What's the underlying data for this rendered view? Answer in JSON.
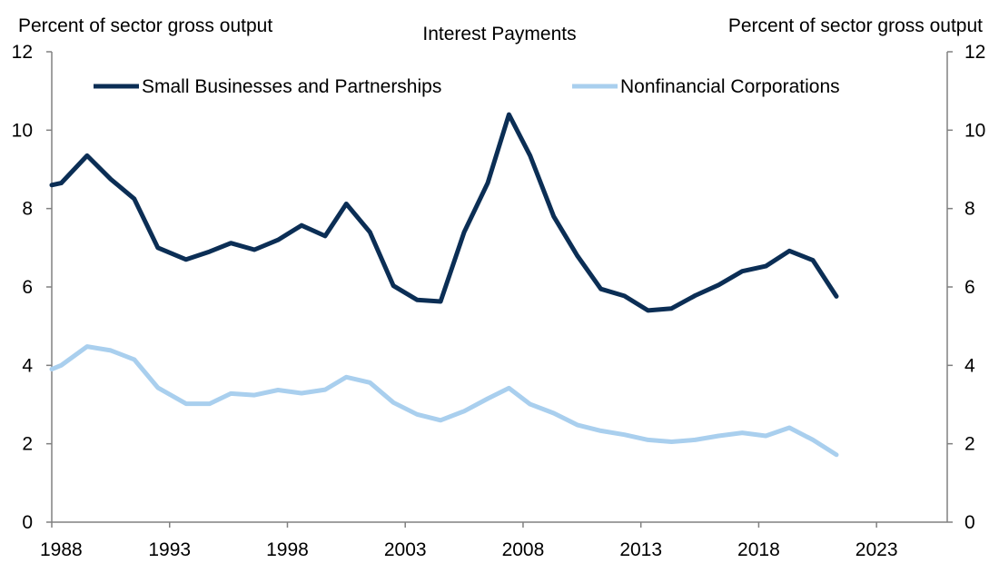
{
  "chart_data": {
    "type": "line",
    "title": "Interest Payments",
    "ylabel_left": "Percent of sector gross output",
    "ylabel_right": "Percent of sector gross output",
    "xlim": [
      1988,
      2026
    ],
    "ylim": [
      0,
      12
    ],
    "x_ticks": [
      "1988",
      "1993",
      "1998",
      "2003",
      "2008",
      "2013",
      "2018",
      "2023"
    ],
    "y_ticks_left": [
      "0",
      "2",
      "4",
      "6",
      "8",
      "10",
      "12"
    ],
    "y_ticks_right": [
      "0",
      "2",
      "4",
      "6",
      "8",
      "10",
      "12"
    ],
    "x_tick_values": [
      1988,
      1993,
      1998,
      2003,
      2008,
      2013,
      2018,
      2023
    ],
    "y_tick_values": [
      0,
      2,
      4,
      6,
      8,
      10,
      12
    ],
    "grid": false,
    "legend_position": "top",
    "x": [
      1988,
      1988.4,
      1989.5,
      1990.5,
      1991.5,
      1992.5,
      1993.7,
      1994.7,
      1995.6,
      1996.6,
      1997.6,
      1998.6,
      1999.6,
      2000.5,
      2001.5,
      2002.5,
      2003.5,
      2004.5,
      2005.5,
      2006.5,
      2007.4,
      2008.3,
      2009.3,
      2010.3,
      2011.3,
      2012.3,
      2013.3,
      2014.3,
      2015.3,
      2016.3,
      2017.3,
      2018.3,
      2019.3,
      2020.3,
      2021.3
    ],
    "series": [
      {
        "name": "Small Businesses and Partnerships",
        "color": "#0b2e55",
        "values": [
          8.6,
          8.65,
          9.35,
          8.75,
          8.25,
          7.0,
          6.7,
          6.9,
          7.12,
          6.95,
          7.2,
          7.57,
          7.3,
          8.12,
          7.4,
          6.03,
          5.67,
          5.63,
          7.4,
          8.65,
          10.4,
          9.35,
          7.8,
          6.8,
          5.95,
          5.77,
          5.4,
          5.45,
          5.78,
          6.05,
          6.4,
          6.53,
          6.92,
          6.68,
          5.76
        ]
      },
      {
        "name": "Nonfinancial Corporations",
        "color": "#a9cfee",
        "values": [
          3.9,
          4.0,
          4.48,
          4.38,
          4.15,
          3.43,
          3.02,
          3.02,
          3.28,
          3.24,
          3.37,
          3.29,
          3.38,
          3.7,
          3.56,
          3.05,
          2.75,
          2.6,
          2.83,
          3.15,
          3.42,
          3.01,
          2.78,
          2.48,
          2.33,
          2.23,
          2.1,
          2.05,
          2.1,
          2.2,
          2.28,
          2.2,
          2.41,
          2.1,
          1.72
        ]
      }
    ]
  }
}
